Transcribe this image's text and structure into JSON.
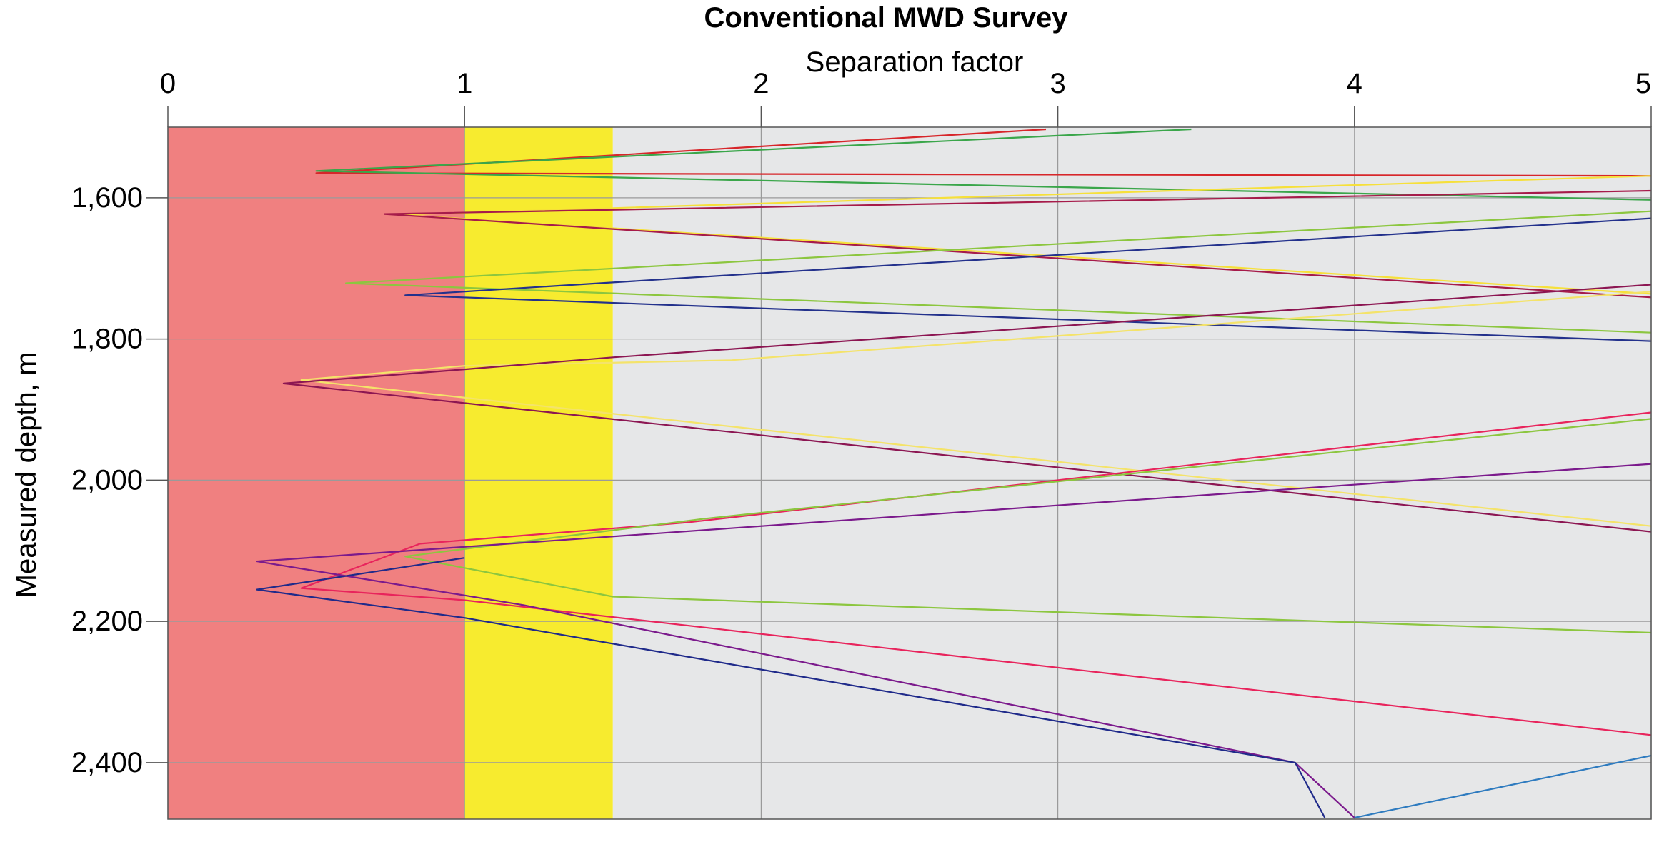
{
  "chart_data": {
    "type": "line",
    "title": "Conventional MWD Survey",
    "xlabel": "Separation factor",
    "ylabel": "Measured depth, m",
    "xlim": [
      0,
      5
    ],
    "ylim": [
      1500,
      2480
    ],
    "y_inverted": true,
    "x_axis_position": "top",
    "grid": true,
    "x_ticks": [
      "0",
      "1",
      "2",
      "3",
      "4",
      "5"
    ],
    "x_tick_values": [
      0,
      1,
      2,
      3,
      4,
      5
    ],
    "y_ticks": [
      "1,600",
      "1,800",
      "2,000",
      "2,200",
      "2,400"
    ],
    "y_tick_values": [
      1600,
      1800,
      2000,
      2200,
      2400
    ],
    "zones": [
      {
        "from": 0,
        "to": 1,
        "color": "#f08080"
      },
      {
        "from": 1,
        "to": 1.5,
        "color": "#f7eb2f"
      },
      {
        "from": 1.5,
        "to": 5,
        "color": "#e6e7e8"
      }
    ],
    "series": [
      {
        "color": "#d7262a",
        "x": [
          2.96,
          0.5,
          5.0
        ],
        "y": [
          1503,
          1565,
          1569
        ]
      },
      {
        "color": "#3aa64a",
        "x": [
          3.45,
          0.5,
          5.0
        ],
        "y": [
          1503,
          1562,
          1603
        ]
      },
      {
        "color": "#f6e03a",
        "x": [
          5.0,
          0.78,
          5.0
        ],
        "y": [
          1569,
          1624,
          1736
        ]
      },
      {
        "color": "#a61b4a",
        "x": [
          5.0,
          0.73,
          5.0
        ],
        "y": [
          1590,
          1623,
          1741
        ]
      },
      {
        "color": "#8cc63f",
        "x": [
          5.0,
          0.6,
          5.0
        ],
        "y": [
          1619,
          1721,
          1791
        ]
      },
      {
        "color": "#23318c",
        "x": [
          5.0,
          0.8,
          5.0
        ],
        "y": [
          1629,
          1738,
          1803
        ]
      },
      {
        "color": "#f4e36a",
        "x": [
          5.0,
          1.9,
          1.0,
          0.45,
          5.0
        ],
        "y": [
          1733,
          1830,
          1838,
          1858,
          2065
        ]
      },
      {
        "color": "#8c1652",
        "x": [
          5.0,
          1.5,
          1.0,
          0.39,
          5.0
        ],
        "y": [
          1723,
          1826,
          1843,
          1863,
          2073
        ]
      },
      {
        "color": "#e8245c",
        "x": [
          5.0,
          1.75,
          0.85,
          0.45,
          1.0,
          5.0
        ],
        "y": [
          1904,
          2060,
          2090,
          2153,
          2170,
          2361
        ]
      },
      {
        "color": "#8cc63f",
        "x": [
          5.0,
          1.8,
          0.8,
          1.5,
          5.0
        ],
        "y": [
          1913,
          2055,
          2108,
          2165,
          2216
        ]
      },
      {
        "color": "#7b1a8c",
        "x": [
          5.0,
          0.3,
          1.2,
          3.8,
          4.0
        ],
        "y": [
          1977,
          2115,
          2177,
          2400,
          2478
        ]
      },
      {
        "color": "#1f2a8a",
        "x": [
          1.0,
          0.3,
          1.0,
          3.8,
          3.9
        ],
        "y": [
          2110,
          2155,
          2195,
          2400,
          2478
        ]
      },
      {
        "color": "#2e7bbf",
        "x": [
          4.0,
          5.0
        ],
        "y": [
          2478,
          2390
        ]
      }
    ]
  }
}
